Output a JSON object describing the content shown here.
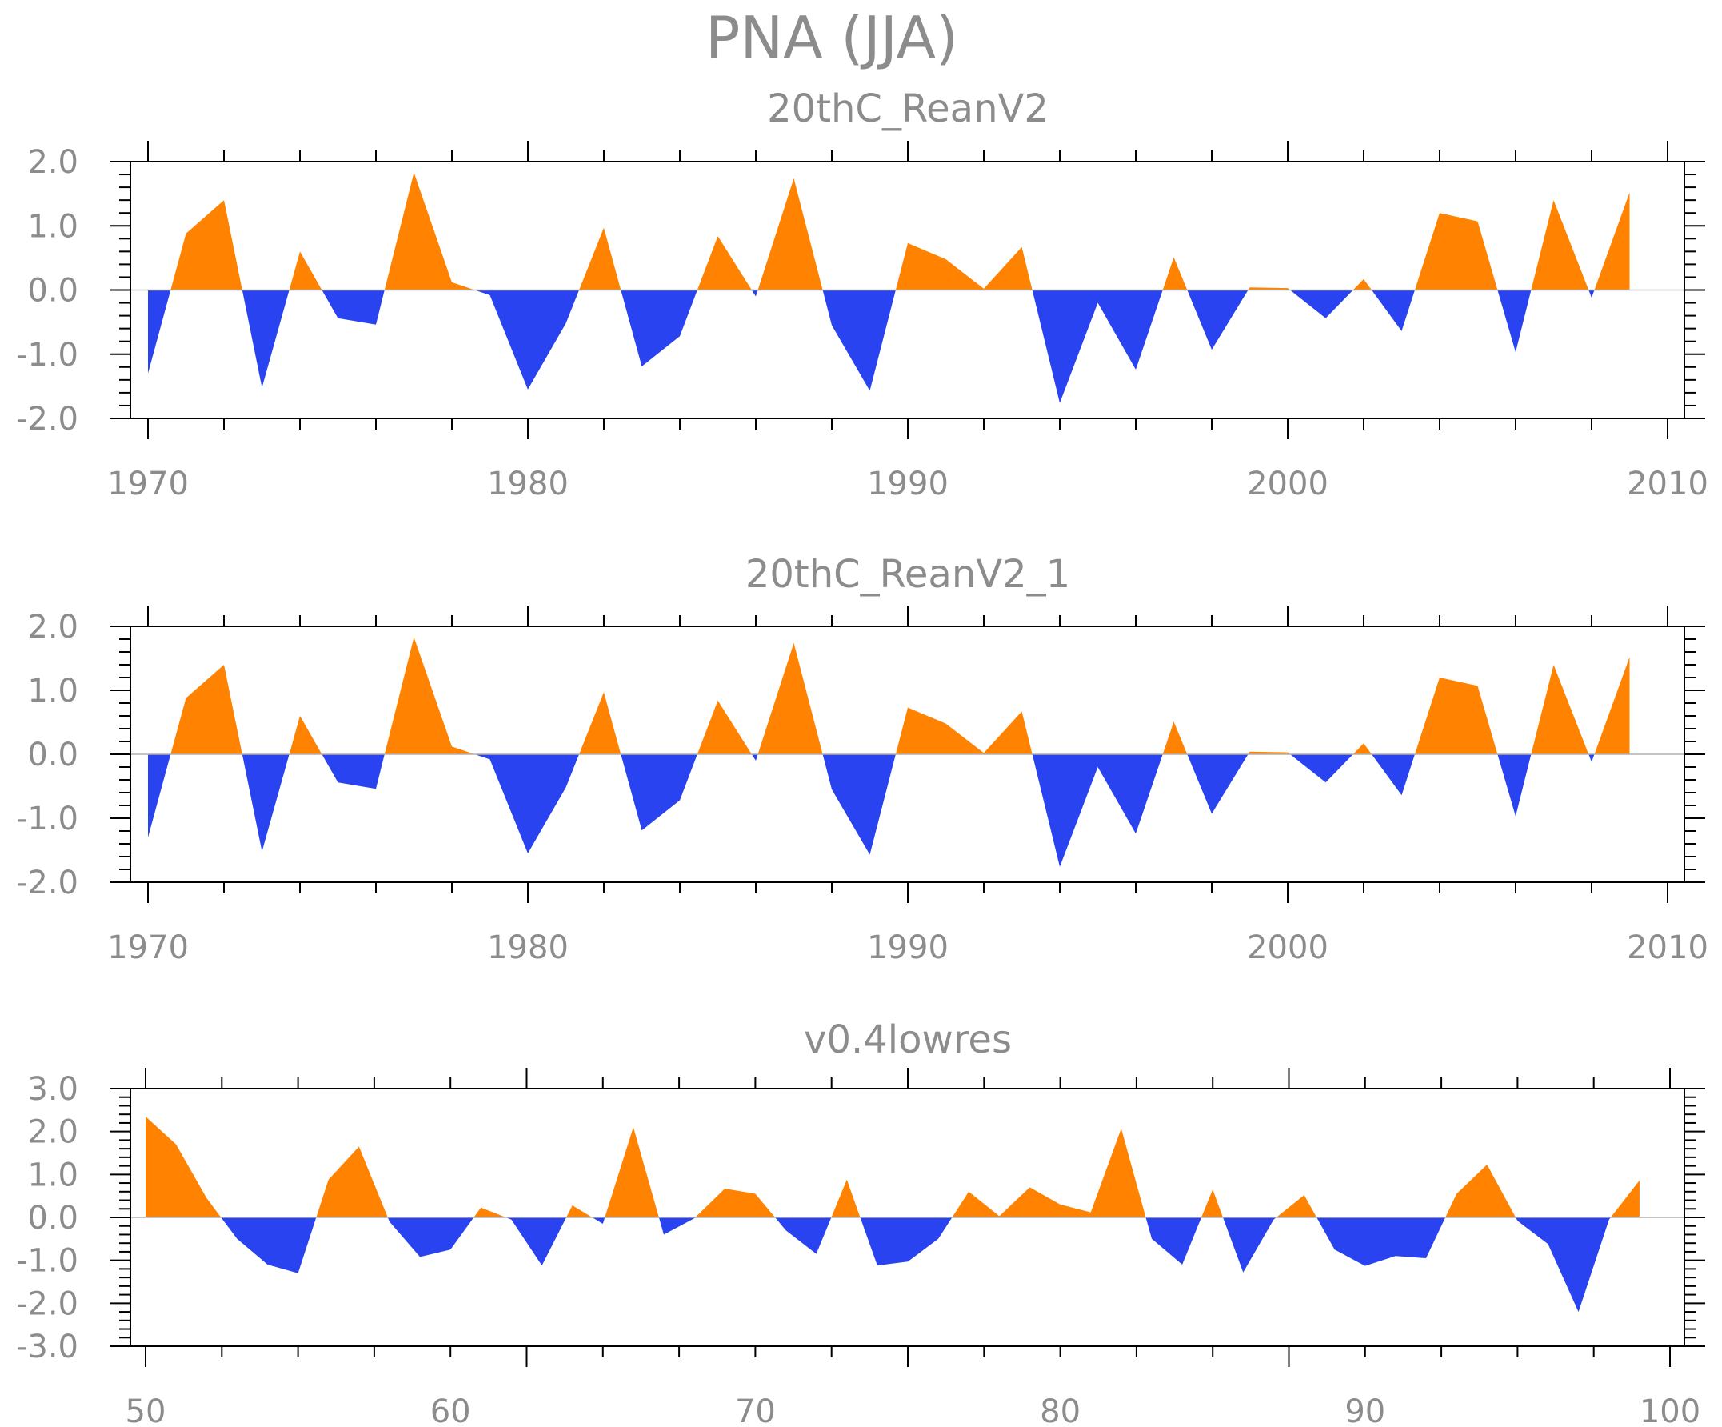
{
  "title": "PNA (JJA)",
  "colors": {
    "positive": "#ff8200",
    "negative": "#2843ef",
    "frame": "#000000",
    "text": "#8c8c8c"
  },
  "chart_data": [
    {
      "type": "area",
      "title": "20thC_ReanV2",
      "x": [
        1970,
        1971,
        1972,
        1973,
        1974,
        1975,
        1976,
        1977,
        1978,
        1979,
        1980,
        1981,
        1982,
        1983,
        1984,
        1985,
        1986,
        1987,
        1988,
        1989,
        1990,
        1991,
        1992,
        1993,
        1994,
        1995,
        1996,
        1997,
        1998,
        1999,
        2000,
        2001,
        2002,
        2003,
        2004,
        2005,
        2006,
        2007,
        2008,
        2009
      ],
      "values": [
        -1.3,
        0.88,
        1.4,
        -1.52,
        0.6,
        -0.44,
        -0.54,
        1.83,
        0.12,
        -0.08,
        -1.55,
        -0.52,
        0.97,
        -1.19,
        -0.72,
        0.84,
        -0.1,
        1.74,
        -0.55,
        -1.57,
        0.73,
        0.48,
        0.02,
        0.67,
        -1.76,
        -0.2,
        -1.24,
        0.51,
        -0.93,
        0.04,
        0.03,
        -0.44,
        0.17,
        -0.64,
        1.2,
        1.07,
        -0.97,
        1.4,
        -0.12,
        1.52
      ],
      "xlim": [
        1970,
        2010
      ],
      "ylim": [
        -2,
        2
      ],
      "xticks": [
        "1970",
        "1980",
        "1990",
        "2000",
        "2010"
      ],
      "yticks": [
        "2.0",
        "1.0",
        "0.0",
        "-1.0",
        "-2.0"
      ],
      "yticks_values": [
        2,
        1,
        0,
        -1,
        -2
      ],
      "xticks_values": [
        1970,
        1980,
        1990,
        2000,
        2010
      ]
    },
    {
      "type": "area",
      "title": "20thC_ReanV2_1",
      "x": [
        1970,
        1971,
        1972,
        1973,
        1974,
        1975,
        1976,
        1977,
        1978,
        1979,
        1980,
        1981,
        1982,
        1983,
        1984,
        1985,
        1986,
        1987,
        1988,
        1989,
        1990,
        1991,
        1992,
        1993,
        1994,
        1995,
        1996,
        1997,
        1998,
        1999,
        2000,
        2001,
        2002,
        2003,
        2004,
        2005,
        2006,
        2007,
        2008,
        2009
      ],
      "values": [
        -1.3,
        0.88,
        1.4,
        -1.52,
        0.6,
        -0.44,
        -0.54,
        1.83,
        0.12,
        -0.08,
        -1.55,
        -0.52,
        0.97,
        -1.19,
        -0.72,
        0.84,
        -0.1,
        1.74,
        -0.55,
        -1.57,
        0.73,
        0.48,
        0.02,
        0.67,
        -1.76,
        -0.2,
        -1.24,
        0.51,
        -0.93,
        0.04,
        0.03,
        -0.44,
        0.17,
        -0.64,
        1.2,
        1.07,
        -0.97,
        1.4,
        -0.12,
        1.52
      ],
      "xlim": [
        1970,
        2010
      ],
      "ylim": [
        -2,
        2
      ],
      "xticks": [
        "1970",
        "1980",
        "1990",
        "2000",
        "2010"
      ],
      "yticks": [
        "2.0",
        "1.0",
        "0.0",
        "-1.0",
        "-2.0"
      ],
      "yticks_values": [
        2,
        1,
        0,
        -1,
        -2
      ],
      "xticks_values": [
        1970,
        1980,
        1990,
        2000,
        2010
      ]
    },
    {
      "type": "area",
      "title": "v0.4lowres",
      "x": [
        50,
        51,
        52,
        53,
        54,
        55,
        56,
        57,
        58,
        59,
        60,
        61,
        62,
        63,
        64,
        65,
        66,
        67,
        68,
        69,
        70,
        71,
        72,
        73,
        74,
        75,
        76,
        77,
        78,
        79,
        80,
        81,
        82,
        83,
        84,
        85,
        86,
        87,
        88,
        89,
        90,
        91,
        92,
        93,
        94,
        95,
        96,
        97,
        98,
        99
      ],
      "values": [
        2.35,
        1.7,
        0.45,
        -0.5,
        -1.1,
        -1.3,
        0.88,
        1.65,
        -0.1,
        -0.92,
        -0.75,
        0.23,
        -0.05,
        -1.12,
        0.28,
        -0.15,
        2.1,
        -0.4,
        -0.02,
        0.67,
        0.55,
        -0.3,
        -0.85,
        0.88,
        -1.12,
        -1.03,
        -0.5,
        0.6,
        0.03,
        0.7,
        0.3,
        0.12,
        2.07,
        -0.5,
        -1.1,
        0.65,
        -1.28,
        -0.05,
        0.52,
        -0.75,
        -1.13,
        -0.9,
        -0.95,
        0.55,
        1.23,
        -0.08,
        -0.62,
        -2.2,
        -0.05,
        0.86
      ],
      "xlim": [
        50,
        100
      ],
      "ylim": [
        -3,
        3
      ],
      "xticks": [
        "50",
        "60",
        "70",
        "80",
        "90",
        "100"
      ],
      "yticks": [
        "3.0",
        "2.0",
        "1.0",
        "0.0",
        "-1.0",
        "-2.0",
        "-3.0"
      ],
      "yticks_values": [
        3,
        2,
        1,
        0,
        -1,
        -2,
        -3
      ],
      "xticks_values": [
        50,
        60,
        70,
        80,
        90,
        100
      ]
    }
  ]
}
